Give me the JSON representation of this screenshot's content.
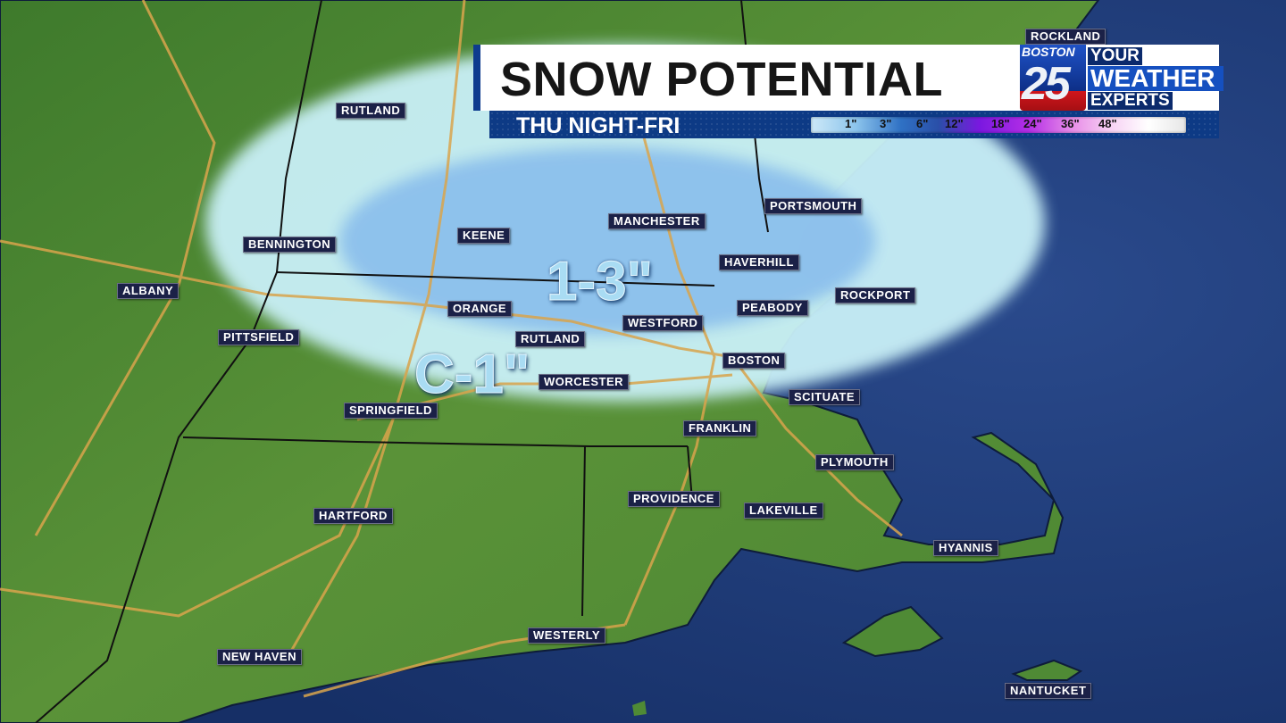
{
  "header": {
    "title": "SNOW POTENTIAL",
    "subtitle": "THU NIGHT-FRI"
  },
  "logo": {
    "station": "BOSTON",
    "number": "25",
    "tagline": [
      "YOUR",
      "WEATHER",
      "EXPERTS"
    ]
  },
  "legend": {
    "ticks": [
      "1\"",
      "3\"",
      "6\"",
      "12\"",
      "18\"",
      "24\"",
      "36\"",
      "48\""
    ],
    "colors": [
      "#cde9f8",
      "#8cc4ec",
      "#2f71c4",
      "#2a4fa8",
      "#7a18e0",
      "#b42ee6",
      "#e88fe8",
      "#f7d2f4",
      "#ffffff"
    ]
  },
  "amounts": {
    "inner": "1-3\"",
    "outer": "C-1\""
  },
  "colors": {
    "land": "#4f8a35",
    "ocean": "#1d3a78",
    "snow_light": "#c9f0f7",
    "snow_heavy": "#8cc0ec",
    "roads": "#d9a44c",
    "header_blue": "#0d3a85"
  },
  "cities": [
    "ROCKLAND",
    "RUTLAND",
    "BENNINGTON",
    "ALBANY",
    "PITTSFIELD",
    "KEENE",
    "MANCHESTER",
    "PORTSMOUTH",
    "HAVERHILL",
    "ROCKPORT",
    "ORANGE",
    "PEABODY",
    "WESTFORD",
    "RUTLAND",
    "BOSTON",
    "WORCESTER",
    "SCITUATE",
    "SPRINGFIELD",
    "FRANKLIN",
    "PLYMOUTH",
    "PROVIDENCE",
    "LAKEVILLE",
    "HARTFORD",
    "HYANNIS",
    "WESTERLY",
    "NEW HAVEN",
    "NANTUCKET"
  ]
}
